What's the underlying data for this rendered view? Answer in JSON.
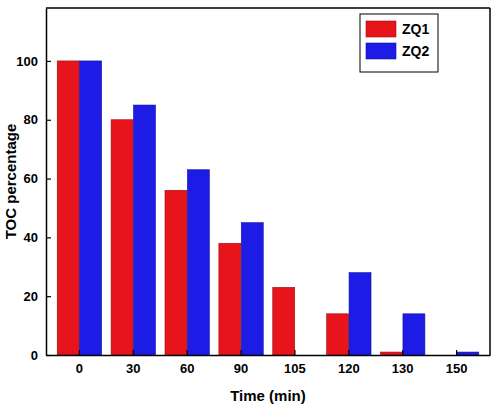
{
  "chart_data": {
    "type": "bar",
    "x_label": "Time (min)",
    "y_label": "TOC percentage",
    "categories": [
      "0",
      "30",
      "60",
      "90",
      "105",
      "120",
      "130",
      "150"
    ],
    "series": [
      {
        "name": "ZQ1",
        "color": "#e8141c",
        "values": [
          100,
          80,
          56,
          38,
          23,
          14,
          1,
          null
        ]
      },
      {
        "name": "ZQ2",
        "color": "#1c1ce6",
        "values": [
          100,
          85,
          63,
          45,
          null,
          28,
          14,
          1
        ]
      }
    ],
    "ylim": [
      0,
      118
    ],
    "yticks": [
      0,
      20,
      40,
      60,
      80,
      100
    ],
    "grid": false,
    "legend": "top-right"
  }
}
